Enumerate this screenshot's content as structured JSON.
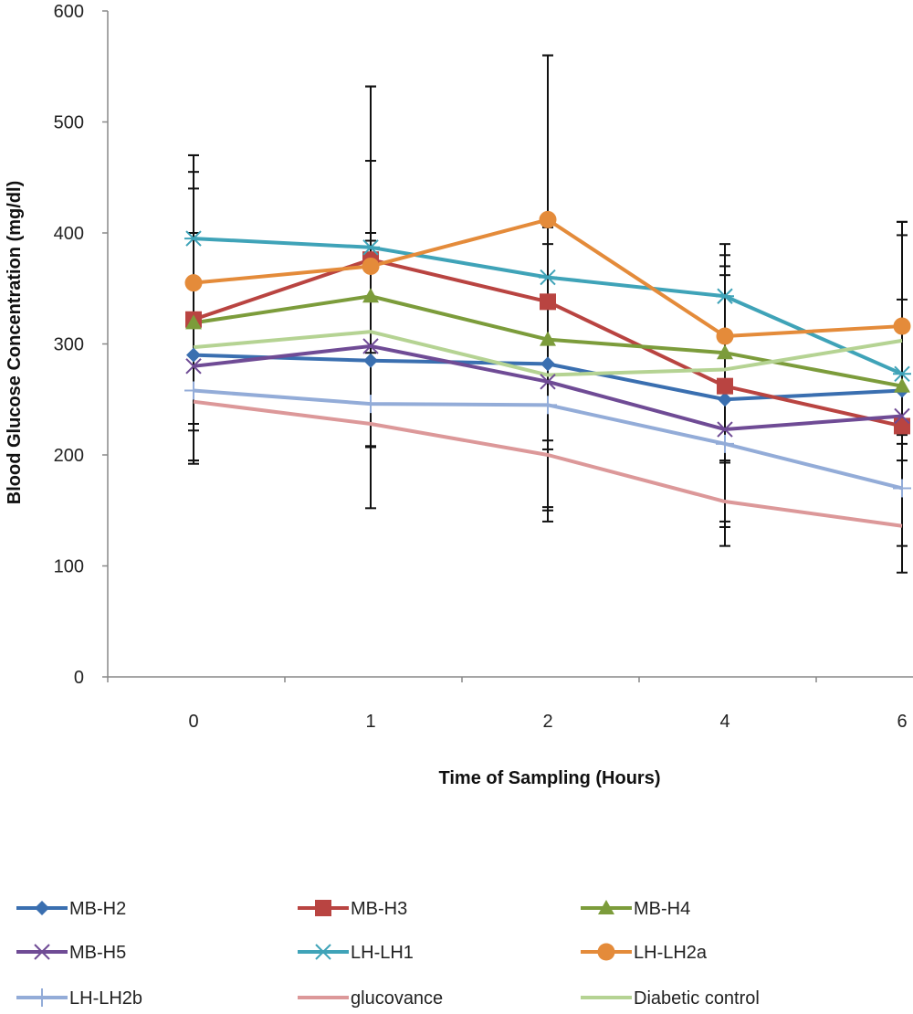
{
  "chart_data": {
    "type": "line",
    "title": "",
    "xlabel": "Time of Sampling (Hours)",
    "ylabel": "Blood Glucose Concentration (mg/dl)",
    "categories": [
      "0",
      "1",
      "2",
      "4",
      "6"
    ],
    "ylim": [
      0,
      600
    ],
    "yticks": [
      "0",
      "100",
      "200",
      "300",
      "400",
      "500",
      "600"
    ],
    "grid": false,
    "legend_position": "bottom",
    "series": [
      {
        "name": "MB-H2",
        "color": "#3a6fb0",
        "marker": "diamond",
        "values": [
          290,
          285,
          282,
          250,
          258
        ],
        "err_low": [
          195,
          207,
          150,
          135,
          118
        ],
        "err_high": [
          455,
          400,
          390,
          370,
          398
        ]
      },
      {
        "name": "MB-H3",
        "color": "#b94441",
        "marker": "square",
        "values": [
          322,
          376,
          338,
          262,
          226
        ],
        "err_low": [
          228,
          208,
          153,
          195,
          210
        ],
        "err_high": [
          470,
          532,
          560,
          362,
          410
        ]
      },
      {
        "name": "MB-H4",
        "color": "#7c9c3b",
        "marker": "triangle",
        "values": [
          319,
          343,
          304,
          292,
          262
        ],
        "err_low": [
          222,
          292,
          213,
          193,
          218
        ],
        "err_high": [
          440,
          465,
          405,
          380,
          320
        ]
      },
      {
        "name": "MB-H5",
        "color": "#6f4b95",
        "marker": "x",
        "values": [
          280,
          298,
          266,
          223,
          235
        ],
        "err_low": [
          195,
          228,
          205,
          140,
          195
        ],
        "err_high": [
          400,
          393,
          343,
          343,
          340
        ]
      },
      {
        "name": "LH-LH1",
        "color": "#3fa3b8",
        "marker": "star",
        "values": [
          395,
          387,
          360,
          343,
          273
        ],
        "err_low": [
          0,
          0,
          0,
          0,
          0
        ],
        "err_high": [
          0,
          0,
          0,
          0,
          0
        ]
      },
      {
        "name": "LH-LH2a",
        "color": "#e48b3a",
        "marker": "circle",
        "values": [
          355,
          370,
          412,
          307,
          316
        ],
        "err_low": [
          192,
          152,
          140,
          118,
          94
        ],
        "err_high": [
          470,
          532,
          560,
          390,
          410
        ]
      },
      {
        "name": "LH-LH2b",
        "color": "#93acd8",
        "marker": "plus",
        "values": [
          258,
          246,
          245,
          210,
          170
        ],
        "err_low": [
          0,
          0,
          0,
          0,
          0
        ],
        "err_high": [
          0,
          0,
          0,
          0,
          0
        ]
      },
      {
        "name": "glucovance",
        "color": "#dc9899",
        "marker": "none",
        "values": [
          248,
          228,
          200,
          158,
          136
        ],
        "err_low": [
          0,
          0,
          0,
          0,
          0
        ],
        "err_high": [
          0,
          0,
          0,
          0,
          0
        ]
      },
      {
        "name": "Diabetic control",
        "color": "#b5d393",
        "marker": "none",
        "values": [
          297,
          311,
          272,
          277,
          303
        ],
        "err_low": [
          0,
          0,
          0,
          0,
          0
        ],
        "err_high": [
          0,
          0,
          0,
          0,
          0
        ]
      }
    ]
  }
}
